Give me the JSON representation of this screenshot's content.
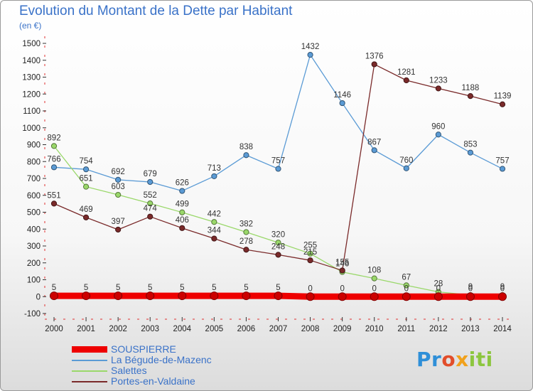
{
  "title": "Evolution du Montant de la Dette par Habitant",
  "unit_label": "(en €)",
  "logo_text": "Proxiti",
  "chart_data": {
    "type": "line",
    "title": "Evolution du Montant de la Dette par Habitant",
    "subtitle": "(en €)",
    "xlabel": "",
    "ylabel": "",
    "x": [
      2000,
      2001,
      2002,
      2003,
      2004,
      2005,
      2006,
      2007,
      2008,
      2009,
      2010,
      2011,
      2012,
      2013,
      2014
    ],
    "ylim": [
      -100,
      1500
    ],
    "yticks": [
      -100,
      0,
      100,
      200,
      300,
      400,
      500,
      600,
      700,
      800,
      900,
      1000,
      1100,
      1200,
      1300,
      1400,
      1500
    ],
    "grid": false,
    "legend_position": "bottom-left",
    "series": [
      {
        "name": "SOUSPIERRE",
        "color": "#ee0000",
        "values": [
          5,
          5,
          5,
          5,
          5,
          5,
          5,
          5,
          0,
          0,
          0,
          0,
          0,
          0,
          0
        ]
      },
      {
        "name": "La Bégude-de-Mazenc",
        "color": "#5b9bd5",
        "values": [
          766,
          754,
          692,
          679,
          626,
          713,
          838,
          757,
          1432,
          1146,
          867,
          760,
          960,
          853,
          757
        ]
      },
      {
        "name": "Salettes",
        "color": "#9ad86a",
        "values": [
          892,
          651,
          603,
          552,
          499,
          442,
          382,
          320,
          255,
          146,
          108,
          67,
          28,
          9,
          9
        ]
      },
      {
        "name": "Portes-en-Valdaine",
        "color": "#7a2a2a",
        "values": [
          551,
          469,
          397,
          474,
          406,
          344,
          278,
          248,
          215,
          155,
          1376,
          1281,
          1233,
          1188,
          1139
        ]
      }
    ]
  }
}
